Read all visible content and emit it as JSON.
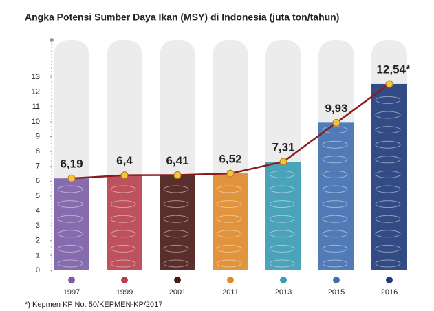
{
  "chart_data": {
    "type": "pictorial-bar-line",
    "title": "Angka Potensi Sumber Daya Ikan (MSY) di Indonesia (juta ton/tahun)",
    "categories": [
      "1997",
      "1999",
      "2001",
      "2011",
      "2013",
      "2015",
      "2016"
    ],
    "values": [
      6.19,
      6.4,
      6.41,
      6.52,
      7.31,
      9.93,
      12.54
    ],
    "value_labels": [
      "6,19",
      "6,4",
      "6,41",
      "6,52",
      "7,31",
      "9,93",
      "12,54*"
    ],
    "colors": [
      "#7b5ea7",
      "#b8404c",
      "#4a1a16",
      "#e08a2a",
      "#3a9bb5",
      "#3f6fb0",
      "#1f3a7a"
    ],
    "line_color": "#8b1a1a",
    "marker_color": "#f5c242",
    "ylim": [
      0,
      13
    ],
    "yticks": [
      0,
      1,
      2,
      3,
      4,
      5,
      6,
      7,
      8,
      9,
      10,
      11,
      12,
      13
    ],
    "footnote": "*) Kepmen KP No. 50/KEPMEN-KP/2017"
  }
}
